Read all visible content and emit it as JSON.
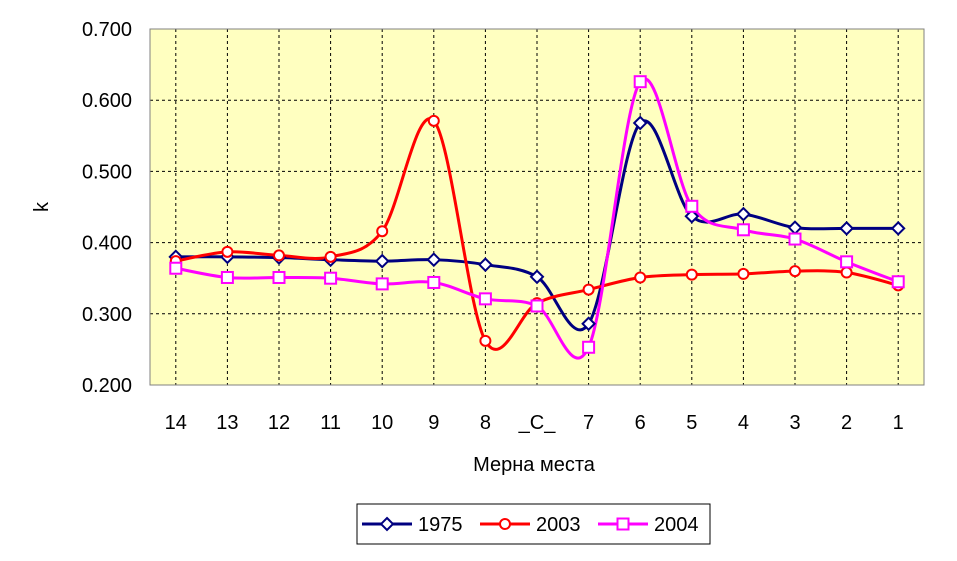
{
  "chart_data": {
    "type": "line",
    "xlabel": "Мерна места",
    "ylabel": "k",
    "categories": [
      "14",
      "13",
      "12",
      "11",
      "10",
      "9",
      "8",
      "_C_",
      "7",
      "6",
      "5",
      "4",
      "3",
      "2",
      "1"
    ],
    "ylim": [
      0.2,
      0.7
    ],
    "yticks": [
      "0.700",
      "0.600",
      "0.500",
      "0.400",
      "0.300",
      "0.200"
    ],
    "grid": true,
    "plot_background": "#ffffc0",
    "legend_position": "bottom",
    "series": [
      {
        "name": "1975",
        "color": "#000080",
        "marker": "diamond",
        "values": [
          0.38,
          0.38,
          0.379,
          0.376,
          0.374,
          0.376,
          0.369,
          0.352,
          0.286,
          0.568,
          0.437,
          0.44,
          0.421,
          0.42,
          0.42
        ]
      },
      {
        "name": "2003",
        "color": "#ff0000",
        "marker": "circle",
        "values": [
          0.374,
          0.387,
          0.382,
          0.38,
          0.416,
          0.571,
          0.262,
          0.315,
          0.334,
          0.351,
          0.355,
          0.356,
          0.36,
          0.358,
          0.34
        ]
      },
      {
        "name": "2004",
        "color": "#ff00ff",
        "marker": "square",
        "values": [
          0.364,
          0.351,
          0.351,
          0.35,
          0.342,
          0.344,
          0.321,
          0.311,
          0.253,
          0.626,
          0.451,
          0.418,
          0.405,
          0.373,
          0.345
        ]
      }
    ]
  }
}
